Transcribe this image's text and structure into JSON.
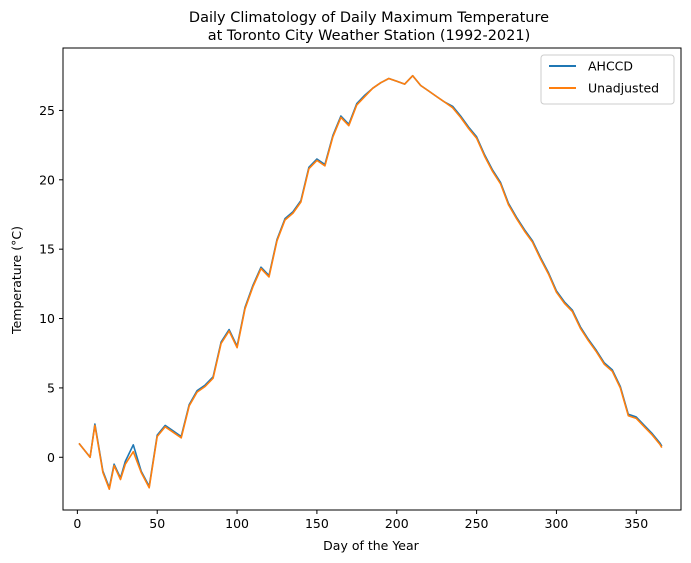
{
  "chart_data": {
    "type": "line",
    "title_line1": "Daily Climatology of Daily Maximum Temperature",
    "title_line2": "at Toronto City Weather Station (1992-2021)",
    "xlabel": "Day of the Year",
    "ylabel": "Temperature (°C)",
    "xlim": [
      -9,
      378
    ],
    "ylim": [
      -3.8,
      29.5
    ],
    "xticks": [
      0,
      50,
      100,
      150,
      200,
      250,
      300,
      350
    ],
    "yticks": [
      0,
      5,
      10,
      15,
      20,
      25
    ],
    "legend_position": "top-right",
    "x_key_days": [
      1,
      8,
      11,
      16,
      20,
      23,
      27,
      30,
      35,
      40,
      45,
      50,
      55,
      60,
      65,
      70,
      75,
      80,
      85,
      90,
      95,
      100,
      105,
      110,
      115,
      120,
      125,
      130,
      135,
      140,
      145,
      150,
      155,
      160,
      165,
      170,
      175,
      180,
      185,
      190,
      195,
      200,
      205,
      210,
      215,
      220,
      225,
      230,
      235,
      240,
      245,
      250,
      255,
      260,
      265,
      270,
      275,
      280,
      285,
      290,
      295,
      300,
      305,
      310,
      315,
      320,
      325,
      330,
      335,
      340,
      345,
      350,
      355,
      360,
      365,
      366
    ],
    "series": [
      {
        "name": "AHCCD",
        "color": "#1f77b4",
        "values": [
          1.0,
          0.0,
          2.4,
          -1.0,
          -2.2,
          -0.5,
          -1.5,
          -0.3,
          0.9,
          -1.0,
          -2.1,
          1.6,
          2.3,
          1.9,
          1.5,
          3.8,
          4.8,
          5.2,
          5.8,
          8.3,
          9.2,
          8.0,
          10.8,
          12.4,
          13.7,
          13.1,
          15.7,
          17.2,
          17.7,
          18.5,
          20.9,
          21.5,
          21.1,
          23.2,
          24.6,
          24.0,
          25.5,
          26.1,
          26.6,
          27.0,
          27.3,
          27.1,
          26.9,
          27.5,
          26.8,
          26.4,
          26.0,
          25.6,
          25.3,
          24.6,
          23.8,
          23.1,
          21.8,
          20.7,
          19.8,
          18.3,
          17.3,
          16.4,
          15.6,
          14.4,
          13.3,
          12.0,
          11.2,
          10.6,
          9.4,
          8.5,
          7.7,
          6.8,
          6.3,
          5.1,
          3.1,
          2.9,
          2.3,
          1.7,
          1.0,
          0.8
        ]
      },
      {
        "name": "Unadjusted",
        "color": "#ff7f0e",
        "values": [
          1.0,
          0.0,
          2.3,
          -1.1,
          -2.3,
          -0.6,
          -1.6,
          -0.5,
          0.4,
          -1.1,
          -2.2,
          1.5,
          2.2,
          1.8,
          1.4,
          3.7,
          4.7,
          5.1,
          5.7,
          8.2,
          9.1,
          7.9,
          10.7,
          12.3,
          13.6,
          13.0,
          15.6,
          17.1,
          17.6,
          18.4,
          20.8,
          21.4,
          21.0,
          23.1,
          24.5,
          23.9,
          25.4,
          26.0,
          26.6,
          27.0,
          27.3,
          27.1,
          26.9,
          27.5,
          26.8,
          26.4,
          26.0,
          25.6,
          25.2,
          24.5,
          23.7,
          23.0,
          21.7,
          20.6,
          19.7,
          18.2,
          17.2,
          16.3,
          15.5,
          14.3,
          13.2,
          11.9,
          11.1,
          10.5,
          9.3,
          8.4,
          7.6,
          6.7,
          6.2,
          5.0,
          3.0,
          2.8,
          2.2,
          1.6,
          0.9,
          0.7
        ]
      }
    ]
  }
}
